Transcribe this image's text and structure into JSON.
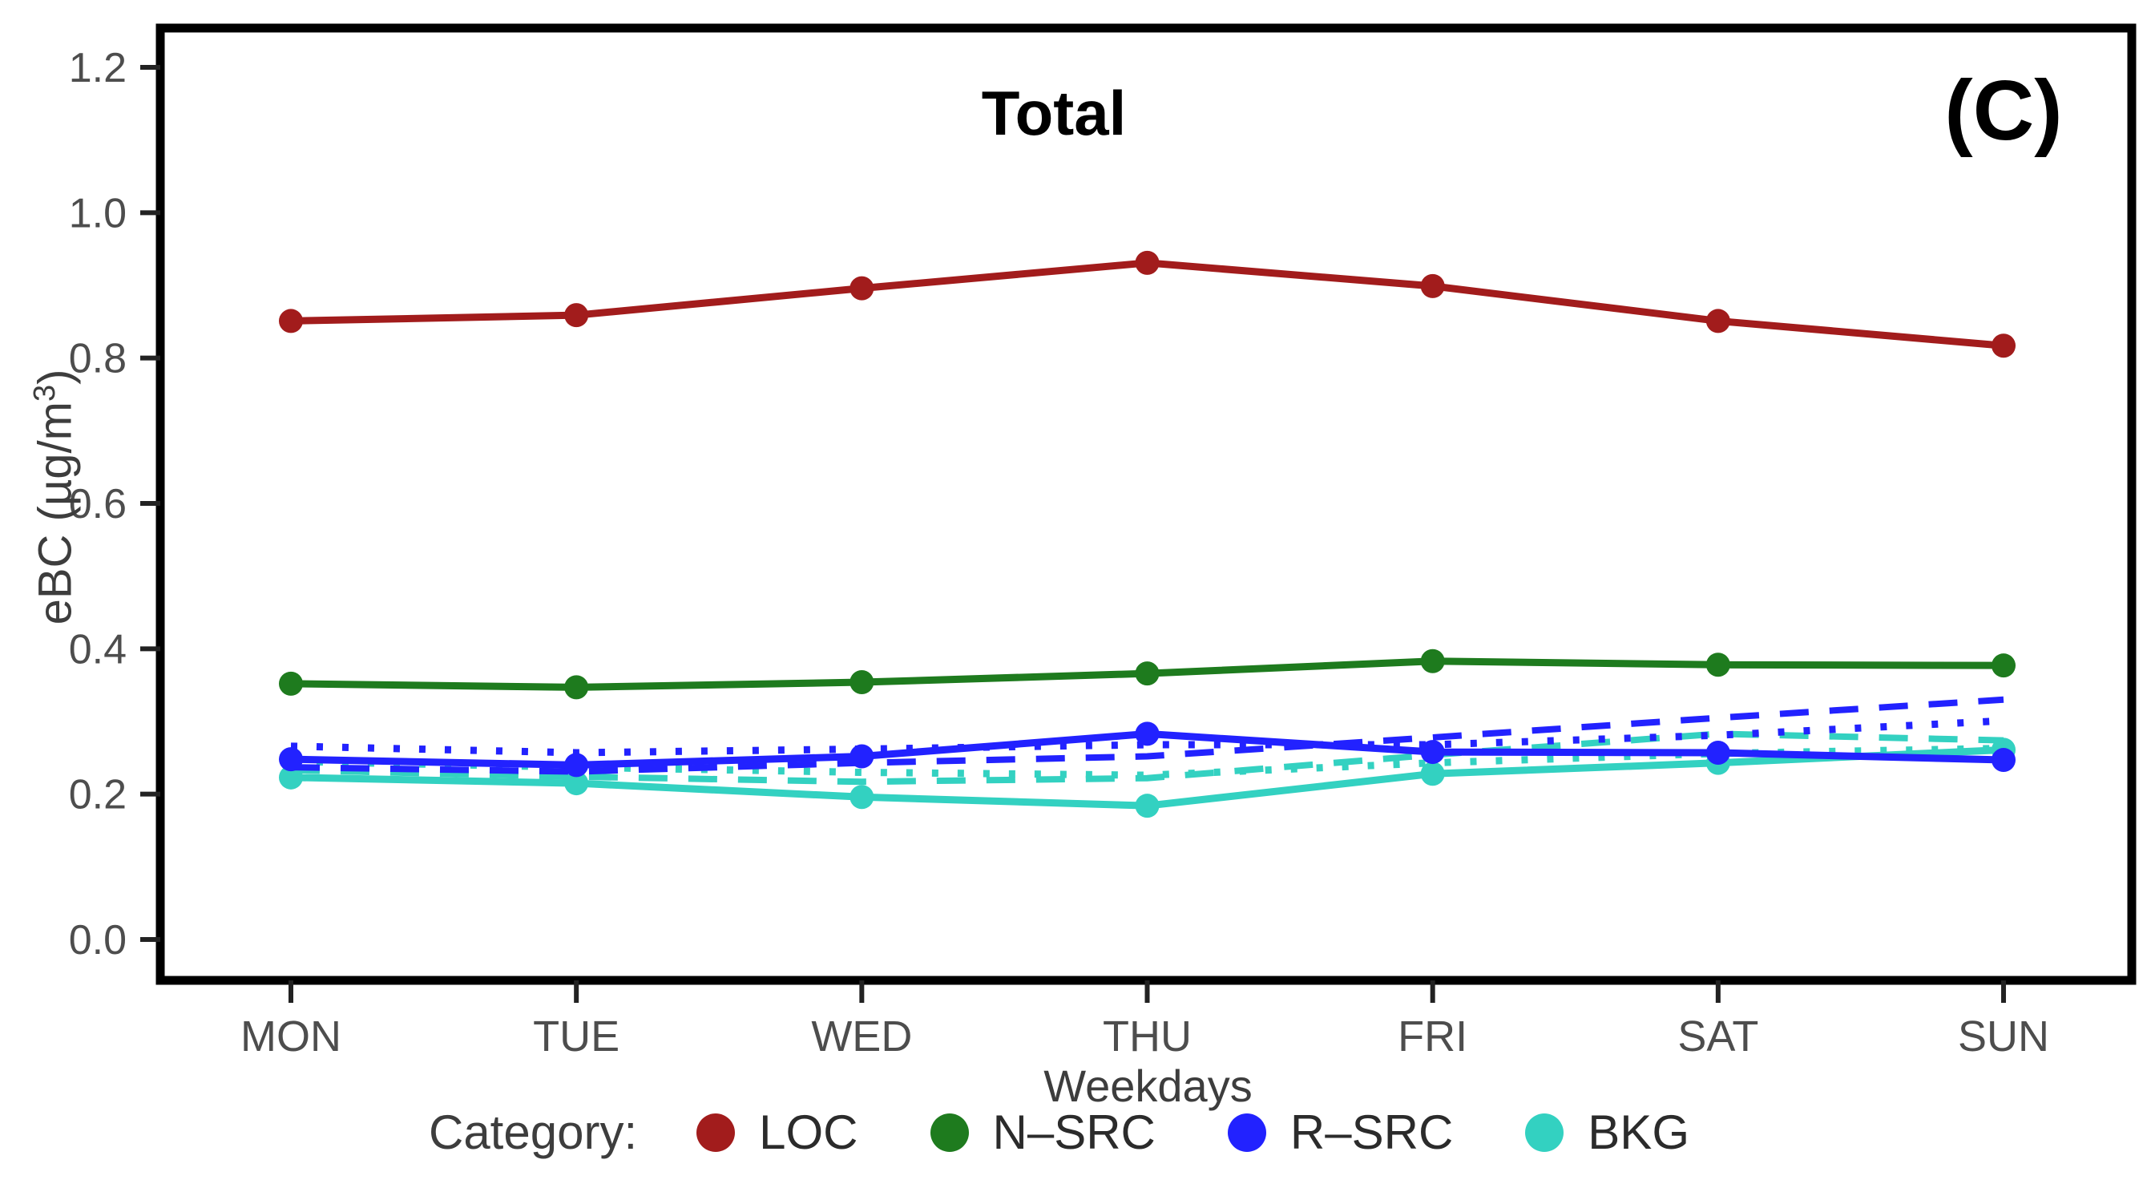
{
  "chart_data": {
    "type": "line",
    "title": "Total",
    "panel_label": "(C)",
    "xlabel": "Weekdays",
    "ylabel": {
      "prefix": "eBC (µg/m",
      "sup": "3",
      "suffix": ")"
    },
    "categories": [
      "MON",
      "TUE",
      "WED",
      "THU",
      "FRI",
      "SAT",
      "SUN"
    ],
    "y_ticks": [
      "0.0",
      "0.2",
      "0.4",
      "0.6",
      "0.8",
      "1.0",
      "1.2"
    ],
    "ylim": [
      0.0,
      1.2
    ],
    "grid": "off",
    "legend_position": "bottom",
    "series": [
      {
        "name": "LOC",
        "color": "#A21C1C",
        "style": "solid",
        "markers": true,
        "values": [
          0.851,
          0.859,
          0.896,
          0.931,
          0.899,
          0.851,
          0.817
        ]
      },
      {
        "name": "N-SRC",
        "color": "#1E7B1E",
        "style": "solid",
        "markers": true,
        "values": [
          0.352,
          0.347,
          0.354,
          0.366,
          0.383,
          0.378,
          0.377
        ]
      },
      {
        "name": "R-SRC",
        "color": "#2222FF",
        "style": "solid",
        "markers": true,
        "values": [
          0.248,
          0.24,
          0.252,
          0.283,
          0.258,
          0.257,
          0.247
        ]
      },
      {
        "name": "R-SRC (dashed)",
        "color": "#2222FF",
        "style": "dashed",
        "markers": false,
        "values": [
          0.237,
          0.231,
          0.243,
          0.252,
          0.278,
          0.305,
          0.33
        ]
      },
      {
        "name": "R-SRC (dotted)",
        "color": "#2222FF",
        "style": "dotted",
        "markers": false,
        "values": [
          0.266,
          0.257,
          0.262,
          0.268,
          0.268,
          0.281,
          0.301
        ]
      },
      {
        "name": "BKG",
        "color": "#33D1C1",
        "style": "solid",
        "markers": true,
        "values": [
          0.223,
          0.215,
          0.196,
          0.184,
          0.228,
          0.243,
          0.261
        ]
      },
      {
        "name": "BKG (dashed)",
        "color": "#33D1C1",
        "style": "dashed",
        "markers": false,
        "values": [
          0.233,
          0.224,
          0.217,
          0.222,
          0.254,
          0.283,
          0.274
        ]
      },
      {
        "name": "BKG (dotted)",
        "color": "#33D1C1",
        "style": "dotted",
        "markers": false,
        "values": [
          0.245,
          0.237,
          0.23,
          0.226,
          0.243,
          0.256,
          0.263
        ]
      }
    ],
    "legend": {
      "label": "Category:",
      "entries": [
        {
          "label": "LOC",
          "color": "#A21C1C"
        },
        {
          "label": "N–SRC",
          "color": "#1E7B1E"
        },
        {
          "label": "R–SRC",
          "color": "#2222FF"
        },
        {
          "label": "BKG",
          "color": "#33D1C1"
        }
      ]
    },
    "colors": {
      "loc": "#A21C1C",
      "n_src": "#1E7B1E",
      "r_src": "#2222FF",
      "bkg": "#33D1C1",
      "axis_text": "#4d4d4d",
      "axis_line": "#000000"
    }
  }
}
